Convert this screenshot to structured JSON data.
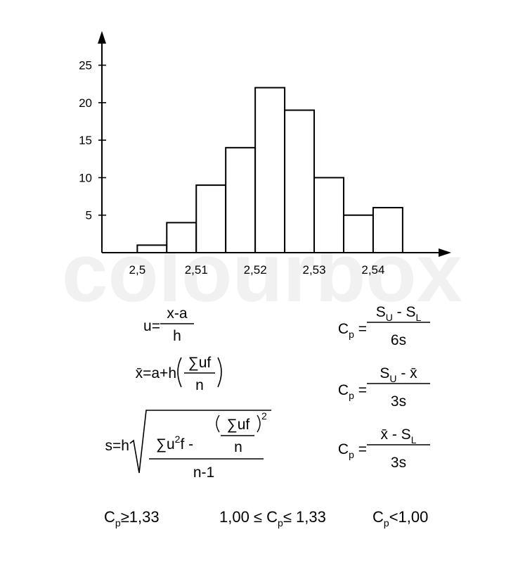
{
  "chart_data": {
    "type": "histogram",
    "watermark": "colourbox",
    "bins": [
      2.5,
      2.505,
      2.51,
      2.515,
      2.52,
      2.525,
      2.53,
      2.535,
      2.54,
      2.545
    ],
    "counts": [
      1,
      4,
      9,
      14,
      22,
      19,
      10,
      5,
      6
    ],
    "color": "#ffffff",
    "xlim": [
      2.494,
      2.553
    ],
    "ylim": [
      0,
      29
    ],
    "xticks": [
      {
        "value": 2.5,
        "label": "2,5"
      },
      {
        "value": 2.51,
        "label": "2,51"
      },
      {
        "value": 2.52,
        "label": "2,52"
      },
      {
        "value": 2.53,
        "label": "2,53"
      },
      {
        "value": 2.54,
        "label": "2,54"
      }
    ],
    "yticks": [
      5,
      10,
      15,
      20,
      25
    ],
    "grid": false,
    "annotations": {
      "u": {
        "lhs": [
          "u="
        ],
        "num": [
          "x-a"
        ],
        "den": [
          "h"
        ]
      },
      "cp_range": {
        "lhs": [
          "C",
          {
            "text": "p",
            "pos": "sub"
          },
          " ="
        ],
        "num": [
          "S",
          {
            "text": "U",
            "pos": "sub"
          },
          " - S",
          {
            "text": "L",
            "pos": "sub"
          }
        ],
        "den": [
          "6s"
        ]
      },
      "mean": {
        "lhs": [
          "x̄=a+h"
        ],
        "num": [
          "∑uf"
        ],
        "den": [
          "n"
        ]
      },
      "cp_upper": {
        "lhs": [
          "C",
          {
            "text": "p",
            "pos": "sub"
          },
          " ="
        ],
        "num": [
          "S",
          {
            "text": "U",
            "pos": "sub"
          },
          " - x̄"
        ],
        "den": [
          "3s"
        ]
      },
      "sd": {
        "lhs": [
          "s=h"
        ],
        "num": [
          "∑u",
          {
            "text": "2",
            "pos": "sup"
          },
          "f -"
        ],
        "inner_num": [
          "∑uf"
        ],
        "inner_exp": "2",
        "inner_den": [
          "n"
        ],
        "den": [
          "n-1"
        ]
      },
      "cp_lower": {
        "lhs": [
          "C",
          {
            "text": "p",
            "pos": "sub"
          },
          " ="
        ],
        "num": [
          "x̄ - S",
          {
            "text": "L",
            "pos": "sub"
          }
        ],
        "den": [
          "3s"
        ]
      },
      "criteria": [
        [
          "C",
          {
            "text": "p",
            "pos": "sub"
          },
          "≥1,33"
        ],
        [
          "1,00 ≤ C",
          {
            "text": "p",
            "pos": "sub"
          },
          "≤ 1,33"
        ],
        [
          "C",
          {
            "text": "p",
            "pos": "sub"
          },
          "<1,00"
        ]
      ]
    }
  }
}
